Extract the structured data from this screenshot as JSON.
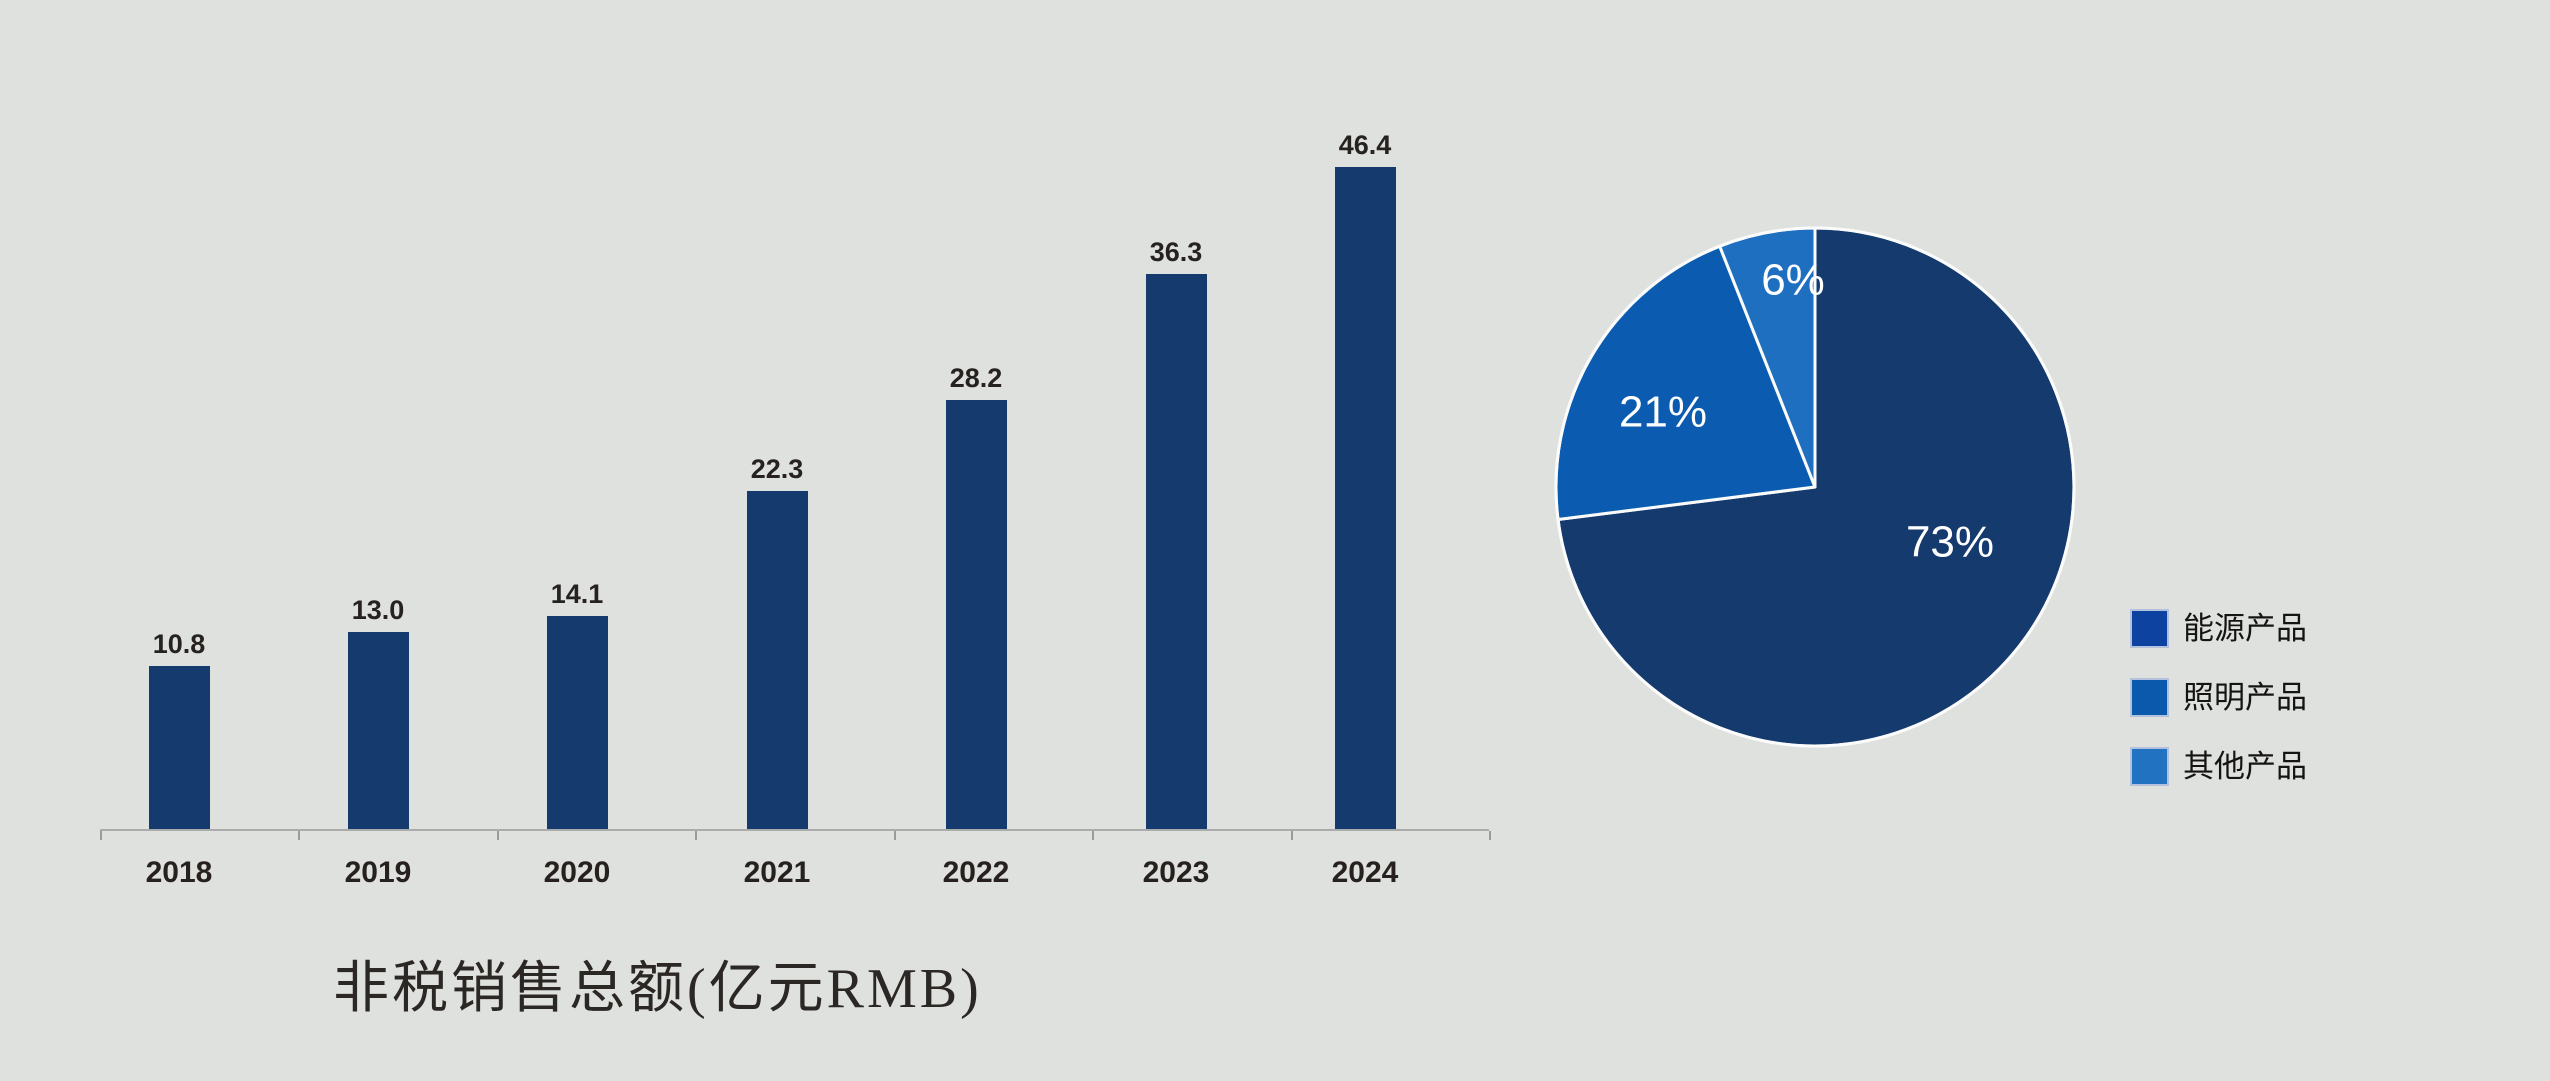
{
  "chart_data": [
    {
      "type": "bar",
      "title": "非税销售总额(亿元RMB)",
      "categories": [
        "2018",
        "2019",
        "2020",
        "2021",
        "2022",
        "2023",
        "2024"
      ],
      "values": [
        10.8,
        13.0,
        14.1,
        22.3,
        28.2,
        36.3,
        46.4
      ],
      "data_labels": [
        "10.8",
        "13.0",
        "14.1",
        "22.3",
        "28.2",
        "36.3",
        "46.4"
      ],
      "xlabel": "",
      "ylabel": "",
      "ylim": [
        0,
        50
      ],
      "grid": false,
      "y_axis_visible": false,
      "bar_color": "#143A6E",
      "axis_color": "#ABABAB",
      "value_label_color": "#262220",
      "legend_position": "none"
    },
    {
      "type": "pie",
      "title": "",
      "labels": [
        "能源产品",
        "照明产品",
        "其他产品"
      ],
      "values": [
        73,
        21,
        6
      ],
      "data_labels": [
        "73%",
        "21%",
        "6%"
      ],
      "colors": [
        "#143A6E",
        "#0B5CB0",
        "#1E6FC0"
      ],
      "legend_colors": [
        "#0D42A1",
        "#0A59AC",
        "#2272C2"
      ],
      "slice_border_color": "#FBFBFB",
      "data_label_color": "#FFFFFF",
      "start_angle": "12-oclock",
      "direction": "clockwise",
      "legend_position": "right-bottom"
    }
  ],
  "colors": {
    "background": "#DFE1DE"
  }
}
